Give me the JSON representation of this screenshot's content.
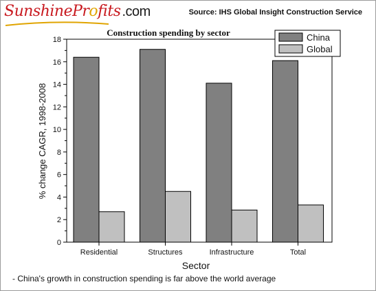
{
  "header": {
    "logo_text_main": "SunshinePr",
    "logo_text_o": "o",
    "logo_text_rest": "fits",
    "logo_text_tld": ".com",
    "source": "Source: IHS Global Insight Construction Service"
  },
  "footnote": "- China's growth in construction spending is far above the world average",
  "chart_data": {
    "type": "bar",
    "title": "Construction spending by sector",
    "xlabel": "Sector",
    "ylabel": "% change CAGR, 1998-2008",
    "categories": [
      "Residential",
      "Structures",
      "Infrastructure",
      "Total"
    ],
    "series": [
      {
        "name": "China",
        "values": [
          16.4,
          17.1,
          14.1,
          16.1
        ],
        "color": "#808080"
      },
      {
        "name": "Global",
        "values": [
          2.7,
          4.5,
          2.85,
          3.3
        ],
        "color": "#c0c0c0"
      }
    ],
    "ylim": [
      0,
      18
    ],
    "yticks": [
      0,
      2,
      4,
      6,
      8,
      10,
      12,
      14,
      16,
      18
    ],
    "grid": false,
    "legend_position": "top-right"
  }
}
